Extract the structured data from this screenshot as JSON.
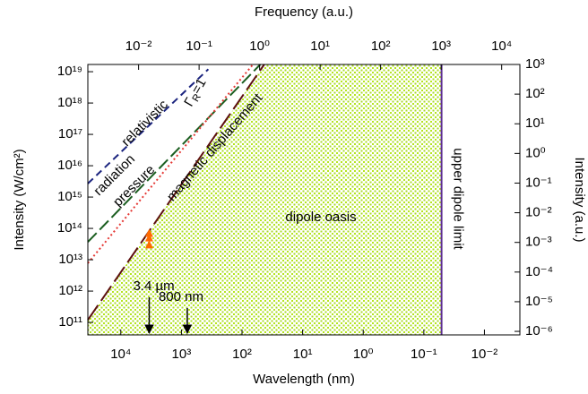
{
  "chart_data": {
    "type": "line",
    "xlabel": "Wavelength (nm)",
    "x2label": "Frequency (a.u.)",
    "ylabel": "Intensity (W/cm²)",
    "y2label": "Intensity (a.u.)",
    "log": true,
    "xlim": [
      35000,
      0.0026
    ],
    "xticks": [
      {
        "value": 10000,
        "label": "10⁴"
      },
      {
        "value": 1000,
        "label": "10³"
      },
      {
        "value": 100,
        "label": "10²"
      },
      {
        "value": 10,
        "label": "10¹"
      },
      {
        "value": 1,
        "label": "10⁰"
      },
      {
        "value": 0.1,
        "label": "10⁻¹"
      },
      {
        "value": 0.01,
        "label": "10⁻²"
      }
    ],
    "x2lim": [
      0.00145,
      20000
    ],
    "x2ticks": [
      {
        "value": 0.01,
        "label": "10⁻²"
      },
      {
        "value": 0.1,
        "label": "10⁻¹"
      },
      {
        "value": 1,
        "label": "10⁰"
      },
      {
        "value": 10,
        "label": "10¹"
      },
      {
        "value": 100,
        "label": "10²"
      },
      {
        "value": 1000,
        "label": "10³"
      },
      {
        "value": 10000,
        "label": "10⁴"
      }
    ],
    "ylim": [
      40000000000,
      17000000000000000000
    ],
    "yticks": [
      {
        "value": 100000000000,
        "label": "10¹¹"
      },
      {
        "value": 1000000000000,
        "label": "10¹²"
      },
      {
        "value": 10000000000000,
        "label": "10¹³"
      },
      {
        "value": 100000000000000,
        "label": "10¹⁴"
      },
      {
        "value": 1000000000000000,
        "label": "10¹⁵"
      },
      {
        "value": 10000000000000000,
        "label": "10¹⁶"
      },
      {
        "value": 100000000000000000,
        "label": "10¹⁷"
      },
      {
        "value": 1000000000000000000,
        "label": "10¹⁸"
      },
      {
        "value": 10000000000000000000,
        "label": "10¹⁹"
      }
    ],
    "y2lim": [
      7.6e-07,
      1000
    ],
    "y2ticks": [
      {
        "value": 1e-06,
        "label": "10⁻⁶"
      },
      {
        "value": 1e-05,
        "label": "10⁻⁵"
      },
      {
        "value": 0.0001,
        "label": "10⁻⁴"
      },
      {
        "value": 0.001,
        "label": "10⁻³"
      },
      {
        "value": 0.01,
        "label": "10⁻²"
      },
      {
        "value": 0.1,
        "label": "10⁻¹"
      },
      {
        "value": 1,
        "label": "10⁰"
      },
      {
        "value": 10,
        "label": "10¹"
      },
      {
        "value": 100,
        "label": "10²"
      },
      {
        "value": 1000,
        "label": "10³"
      }
    ],
    "series": [
      {
        "color": "#1a237e",
        "dash": "8,5",
        "x": [
          35000,
          360
        ],
        "values": [
          2700000000000000,
          12000000000000000000
        ]
      },
      {
        "color": "#1b5e20",
        "dash": "14,5",
        "x": [
          35000,
          50
        ],
        "values": [
          37000000000000,
          17000000000000000000
        ]
      },
      {
        "color": "#e53935",
        "dash": "2,3",
        "x": [
          35000,
          66
        ],
        "values": [
          7800000000000,
          17000000000000000000
        ]
      },
      {
        "color": "#5d1010",
        "dash": "20,6",
        "x": [
          35000,
          43
        ],
        "values": [
          120000000000,
          17000000000000000000
        ]
      }
    ],
    "points": {
      "color": "#ff6a00",
      "x": [
        3400,
        3400,
        3400
      ],
      "values": [
        70000000000000,
        50000000000000,
        30000000000000
      ]
    },
    "vline": {
      "x": 0.051,
      "color": "#5b2c91",
      "label": "upper dipole limit"
    },
    "labels": {
      "relativistic": "relativistic",
      "radiation": "radiation",
      "pressure": "pressure",
      "magnetic": "magnetic displacement",
      "oasis": "dipole oasis",
      "gamma": [
        "Γ",
        "R",
        "=1"
      ]
    },
    "annotations": [
      {
        "text": "3.4 µm",
        "x": 3400
      },
      {
        "text": "800 nm",
        "x": 800
      }
    ]
  }
}
